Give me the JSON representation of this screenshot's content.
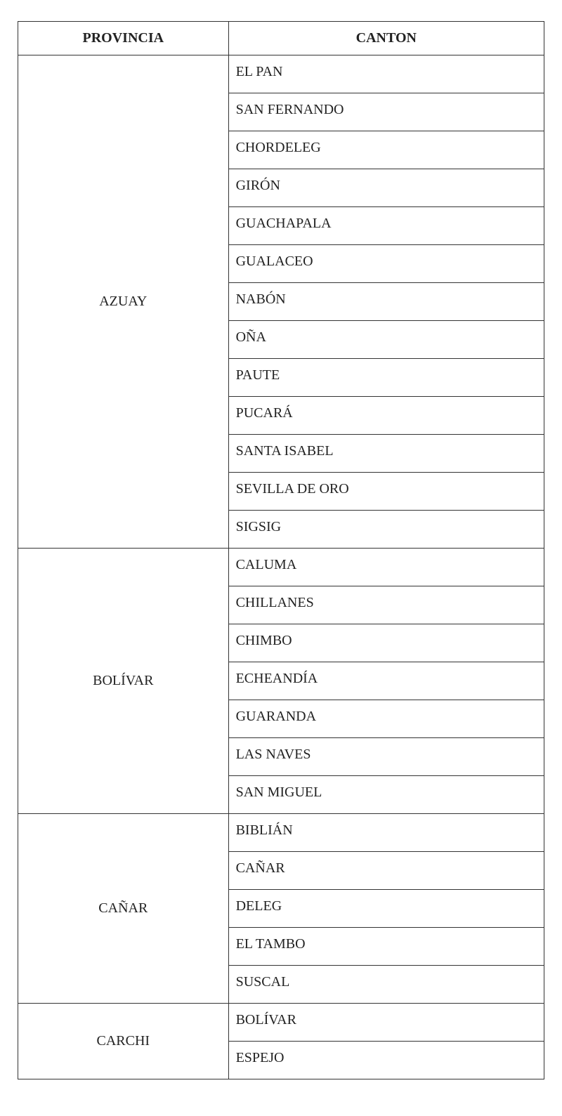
{
  "headers": {
    "provincia": "PROVINCIA",
    "canton": "CANTON"
  },
  "rows": [
    {
      "provincia": "AZUAY",
      "cantons": [
        "EL PAN",
        "SAN FERNANDO",
        "CHORDELEG",
        "GIRÓN",
        "GUACHAPALA",
        "GUALACEO",
        "NABÓN",
        "OÑA",
        "PAUTE",
        "PUCARÁ",
        "SANTA ISABEL",
        "SEVILLA DE ORO",
        "SIGSIG"
      ]
    },
    {
      "provincia": "BOLÍVAR",
      "cantons": [
        "CALUMA",
        "CHILLANES",
        "CHIMBO",
        "ECHEANDÍA",
        "GUARANDA",
        "LAS NAVES",
        "SAN MIGUEL"
      ]
    },
    {
      "provincia": "CAÑAR",
      "cantons": [
        "BIBLIÁN",
        "CAÑAR",
        "DELEG",
        "EL TAMBO",
        "SUSCAL"
      ]
    },
    {
      "provincia": "CARCHI",
      "cantons": [
        "BOLÍVAR",
        "ESPEJO"
      ]
    }
  ]
}
